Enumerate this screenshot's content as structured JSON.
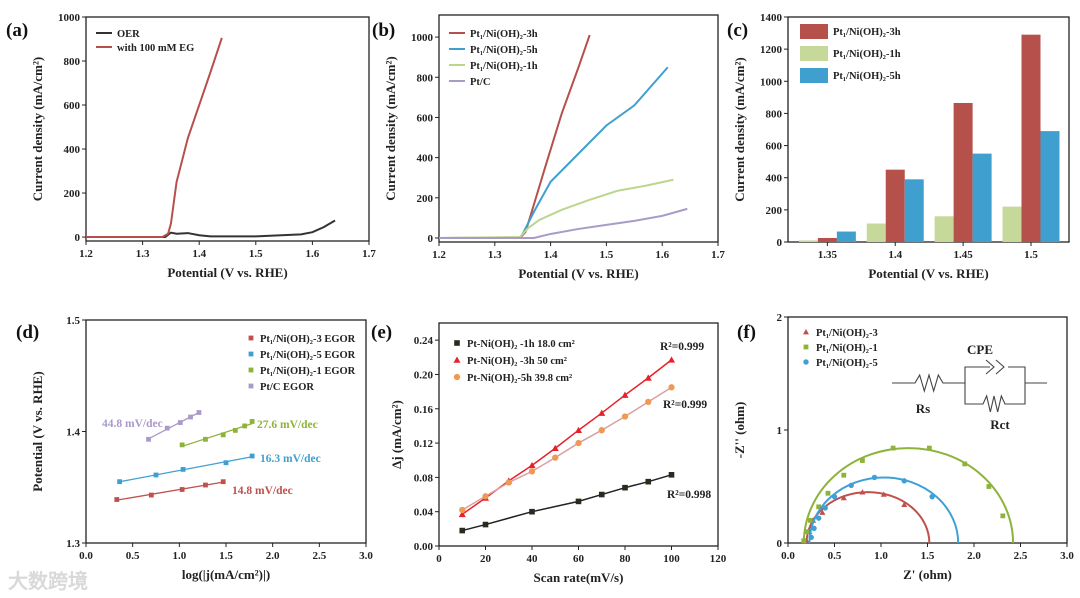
{
  "watermark": "大数跨境",
  "chart_data": [
    {
      "panel": "(a)",
      "type": "line",
      "xlabel": "Potential (V vs. RHE)",
      "ylabel": "Current density (mA/cm²)",
      "xlim": [
        1.2,
        1.7
      ],
      "ylim": [
        -18,
        1000
      ],
      "xticks": [
        "1.2",
        "1.3",
        "1.4",
        "1.5",
        "1.6",
        "1.7"
      ],
      "yticks": [
        "0",
        "200",
        "400",
        "600",
        "800",
        "1000"
      ],
      "legend": "top-left",
      "series": [
        {
          "name": "OER",
          "color": "#333333",
          "points": [
            [
              1.2,
              0
            ],
            [
              1.34,
              0
            ],
            [
              1.35,
              20
            ],
            [
              1.36,
              15
            ],
            [
              1.38,
              18
            ],
            [
              1.4,
              8
            ],
            [
              1.42,
              3
            ],
            [
              1.5,
              3
            ],
            [
              1.58,
              12
            ],
            [
              1.6,
              22
            ],
            [
              1.62,
              45
            ],
            [
              1.64,
              75
            ]
          ]
        },
        {
          "name": "with 100 mM EG",
          "color": "#b5504b",
          "points": [
            [
              1.2,
              0
            ],
            [
              1.335,
              0
            ],
            [
              1.345,
              15
            ],
            [
              1.35,
              60
            ],
            [
              1.36,
              250
            ],
            [
              1.38,
              450
            ],
            [
              1.4,
              600
            ],
            [
              1.42,
              750
            ],
            [
              1.44,
              905
            ]
          ]
        }
      ]
    },
    {
      "panel": "(b)",
      "type": "line",
      "xlabel": "Potential (V vs. RHE)",
      "ylabel": "Current density (mA/cm²)",
      "xlim": [
        1.2,
        1.7
      ],
      "ylim": [
        -20,
        1110
      ],
      "xticks": [
        "1.2",
        "1.3",
        "1.4",
        "1.5",
        "1.6",
        "1.7"
      ],
      "yticks": [
        "0",
        "200",
        "400",
        "600",
        "800",
        "1000"
      ],
      "legend": "top-left",
      "series": [
        {
          "name": "Pt₁/Ni(OH)₂-3h",
          "color": "#b5504b",
          "points": [
            [
              1.2,
              0
            ],
            [
              1.345,
              0
            ],
            [
              1.355,
              30
            ],
            [
              1.365,
              120
            ],
            [
              1.39,
              350
            ],
            [
              1.42,
              620
            ],
            [
              1.45,
              850
            ],
            [
              1.47,
              1010
            ]
          ]
        },
        {
          "name": "Pt₁/Ni(OH)₂-5h",
          "color": "#3fa0d0",
          "points": [
            [
              1.2,
              0
            ],
            [
              1.345,
              3
            ],
            [
              1.35,
              20
            ],
            [
              1.37,
              130
            ],
            [
              1.4,
              280
            ],
            [
              1.45,
              420
            ],
            [
              1.5,
              560
            ],
            [
              1.55,
              660
            ],
            [
              1.61,
              850
            ]
          ]
        },
        {
          "name": "Pt₁/Ni(OH)₂-1h",
          "color": "#bcd68e",
          "points": [
            [
              1.2,
              0
            ],
            [
              1.345,
              5
            ],
            [
              1.36,
              50
            ],
            [
              1.38,
              90
            ],
            [
              1.42,
              140
            ],
            [
              1.47,
              190
            ],
            [
              1.52,
              235
            ],
            [
              1.57,
              260
            ],
            [
              1.62,
              290
            ]
          ]
        },
        {
          "name": "Pt/C",
          "color": "#a99bc8",
          "points": [
            [
              1.2,
              0
            ],
            [
              1.37,
              0
            ],
            [
              1.4,
              20
            ],
            [
              1.45,
              45
            ],
            [
              1.5,
              65
            ],
            [
              1.55,
              85
            ],
            [
              1.6,
              110
            ],
            [
              1.645,
              145
            ]
          ]
        }
      ]
    },
    {
      "panel": "(c)",
      "type": "bar",
      "xlabel": "Potential (V vs. RHE)",
      "ylabel": "Current density (mA/cm²)",
      "categories": [
        "1.35",
        "1.4",
        "1.45",
        "1.5"
      ],
      "xlim": [
        1.321,
        1.528
      ],
      "ylim": [
        0,
        1400
      ],
      "yticks": [
        "0",
        "200",
        "400",
        "600",
        "800",
        "1000",
        "1200",
        "1400"
      ],
      "legend": "top-left",
      "bar_order": [
        "Pt₁/Ni(OH)₂-1h",
        "Pt₁/Ni(OH)₂-3h",
        "Pt₁/Ni(OH)₂-5h"
      ],
      "series": [
        {
          "name": "Pt₁/Ni(OH)₂-3h",
          "color": "#b5504b",
          "values": [
            25,
            450,
            865,
            1290
          ]
        },
        {
          "name": "Pt₁/Ni(OH)₂-1h",
          "color": "#c6d89a",
          "values": [
            10,
            115,
            160,
            220
          ]
        },
        {
          "name": "Pt₁/Ni(OH)₂-5h",
          "color": "#3fa0d0",
          "values": [
            65,
            390,
            550,
            690
          ]
        }
      ]
    },
    {
      "panel": "(d)",
      "type": "scatter",
      "xlabel": "log(|j(mA/cm²)|)",
      "ylabel": "Potential (V vs. RHE)",
      "xlim": [
        0,
        3
      ],
      "ylim": [
        1.3,
        1.5
      ],
      "xticks": [
        "0.0",
        "0.5",
        "1.0",
        "1.5",
        "2.0",
        "2.5",
        "3.0"
      ],
      "yticks": [
        "1.3",
        "1.4",
        "1.5"
      ],
      "legend": "top-right",
      "series": [
        {
          "name": "Pt₁/Ni(OH)₂-3 EGOR",
          "color": "#c0504d",
          "slope": "14.8 mV/dec",
          "points": [
            [
              0.33,
              1.339
            ],
            [
              0.7,
              1.343
            ],
            [
              1.03,
              1.348
            ],
            [
              1.28,
              1.352
            ],
            [
              1.47,
              1.355
            ]
          ]
        },
        {
          "name": "Pt₁/Ni(OH)₂-5 EGOR",
          "color": "#3fa0d0",
          "slope": "16.3 mV/dec",
          "points": [
            [
              0.36,
              1.355
            ],
            [
              0.75,
              1.361
            ],
            [
              1.04,
              1.366
            ],
            [
              1.5,
              1.372
            ],
            [
              1.78,
              1.378
            ]
          ]
        },
        {
          "name": "Pt₁/Ni(OH)₂-1 EGOR",
          "color": "#8db33a",
          "slope": "27.6 mV/dec",
          "points": [
            [
              1.03,
              1.388
            ],
            [
              1.28,
              1.393
            ],
            [
              1.47,
              1.397
            ],
            [
              1.6,
              1.401
            ],
            [
              1.7,
              1.405
            ],
            [
              1.78,
              1.409
            ]
          ]
        },
        {
          "name": "Pt/C EGOR",
          "color": "#a99bc8",
          "slope": "44.8 mV/dec",
          "points": [
            [
              0.67,
              1.393
            ],
            [
              0.87,
              1.403
            ],
            [
              1.01,
              1.408
            ],
            [
              1.12,
              1.413
            ],
            [
              1.21,
              1.417
            ]
          ]
        }
      ]
    },
    {
      "panel": "(e)",
      "type": "scatter",
      "xlabel": "Scan rate(mV/s)",
      "ylabel": "Δj (mA/cm²)",
      "xlim": [
        0,
        120
      ],
      "ylim": [
        0,
        0.26
      ],
      "xticks": [
        "0",
        "20",
        "40",
        "60",
        "80",
        "100",
        "120"
      ],
      "yticks": [
        "0.00",
        "0.04",
        "0.08",
        "0.12",
        "0.16",
        "0.20",
        "0.24"
      ],
      "legend": "top-left",
      "series": [
        {
          "name": "Pt-Ni(OH)₂ -1h  18.0 cm²",
          "color": "#2a2a1e",
          "line": "#222222",
          "text": "#222222",
          "marker": "square",
          "r2": "R²=0.998",
          "points": [
            [
              10,
              0.018
            ],
            [
              20,
              0.025
            ],
            [
              40,
              0.04
            ],
            [
              60,
              0.052
            ],
            [
              70,
              0.06
            ],
            [
              80,
              0.068
            ],
            [
              90,
              0.075
            ],
            [
              100,
              0.083
            ]
          ]
        },
        {
          "name": "Pt-Ni(OH)₂ -3h 50 cm²",
          "color": "#e8202a",
          "line": "#e8202a",
          "text": "#e8202a",
          "marker": "triangle",
          "r2": "R²=0.999",
          "points": [
            [
              10,
              0.037
            ],
            [
              20,
              0.056
            ],
            [
              30,
              0.076
            ],
            [
              40,
              0.094
            ],
            [
              50,
              0.114
            ],
            [
              60,
              0.135
            ],
            [
              70,
              0.155
            ],
            [
              80,
              0.176
            ],
            [
              90,
              0.196
            ],
            [
              100,
              0.217
            ]
          ]
        },
        {
          "name": "Pt-Ni(OH)₂-5h 39.8 cm²",
          "color": "#ee9a55",
          "line": "#d9a0a0",
          "text": "#d58a8a",
          "marker": "circle",
          "r2": "R²=0.999",
          "points": [
            [
              10,
              0.042
            ],
            [
              20,
              0.058
            ],
            [
              30,
              0.074
            ],
            [
              40,
              0.087
            ],
            [
              50,
              0.103
            ],
            [
              60,
              0.12
            ],
            [
              70,
              0.135
            ],
            [
              80,
              0.151
            ],
            [
              90,
              0.168
            ],
            [
              100,
              0.185
            ]
          ]
        }
      ]
    },
    {
      "panel": "(f)",
      "type": "scatter",
      "xlabel": "Z' (ohm)",
      "ylabel": "-Z'' (ohm)",
      "xlim": [
        0,
        3
      ],
      "ylim": [
        0,
        2
      ],
      "xticks": [
        "0.0",
        "0.5",
        "1.0",
        "1.5",
        "2.0",
        "2.5",
        "3.0"
      ],
      "yticks": [
        "0",
        "1",
        "2"
      ],
      "legend": "top-left",
      "circuit": {
        "cpe": "CPE",
        "rs": "Rs",
        "rct": "Rct"
      },
      "series": [
        {
          "name": "Pt₁/Ni(OH)₂-3",
          "color": "#c0504d",
          "marker": "triangle",
          "fit": {
            "start": 0.2,
            "end": 1.52,
            "peak": 0.45
          },
          "points": [
            [
              0.2,
              0.02
            ],
            [
              0.23,
              0.1
            ],
            [
              0.27,
              0.2
            ],
            [
              0.37,
              0.27
            ],
            [
              0.6,
              0.4
            ],
            [
              0.8,
              0.45
            ],
            [
              1.03,
              0.43
            ],
            [
              1.25,
              0.34
            ]
          ]
        },
        {
          "name": "Pt₁/Ni(OH)₂-1",
          "color": "#8db33a",
          "marker": "square",
          "fit": {
            "start": 0.17,
            "end": 2.42,
            "peak": 0.84
          },
          "points": [
            [
              0.17,
              0.02
            ],
            [
              0.2,
              0.1
            ],
            [
              0.24,
              0.2
            ],
            [
              0.33,
              0.32
            ],
            [
              0.43,
              0.44
            ],
            [
              0.6,
              0.6
            ],
            [
              0.8,
              0.73
            ],
            [
              1.13,
              0.84
            ],
            [
              1.52,
              0.84
            ],
            [
              1.9,
              0.7
            ],
            [
              2.16,
              0.5
            ],
            [
              2.31,
              0.24
            ]
          ]
        },
        {
          "name": "Pt₁/Ni(OH)₂-5",
          "color": "#3fa0d8",
          "marker": "circle",
          "fit": {
            "start": 0.23,
            "end": 1.83,
            "peak": 0.58
          },
          "points": [
            [
              0.25,
              0.05
            ],
            [
              0.28,
              0.13
            ],
            [
              0.33,
              0.22
            ],
            [
              0.4,
              0.31
            ],
            [
              0.5,
              0.41
            ],
            [
              0.68,
              0.51
            ],
            [
              0.93,
              0.58
            ],
            [
              1.25,
              0.55
            ],
            [
              1.55,
              0.41
            ]
          ]
        }
      ]
    }
  ]
}
